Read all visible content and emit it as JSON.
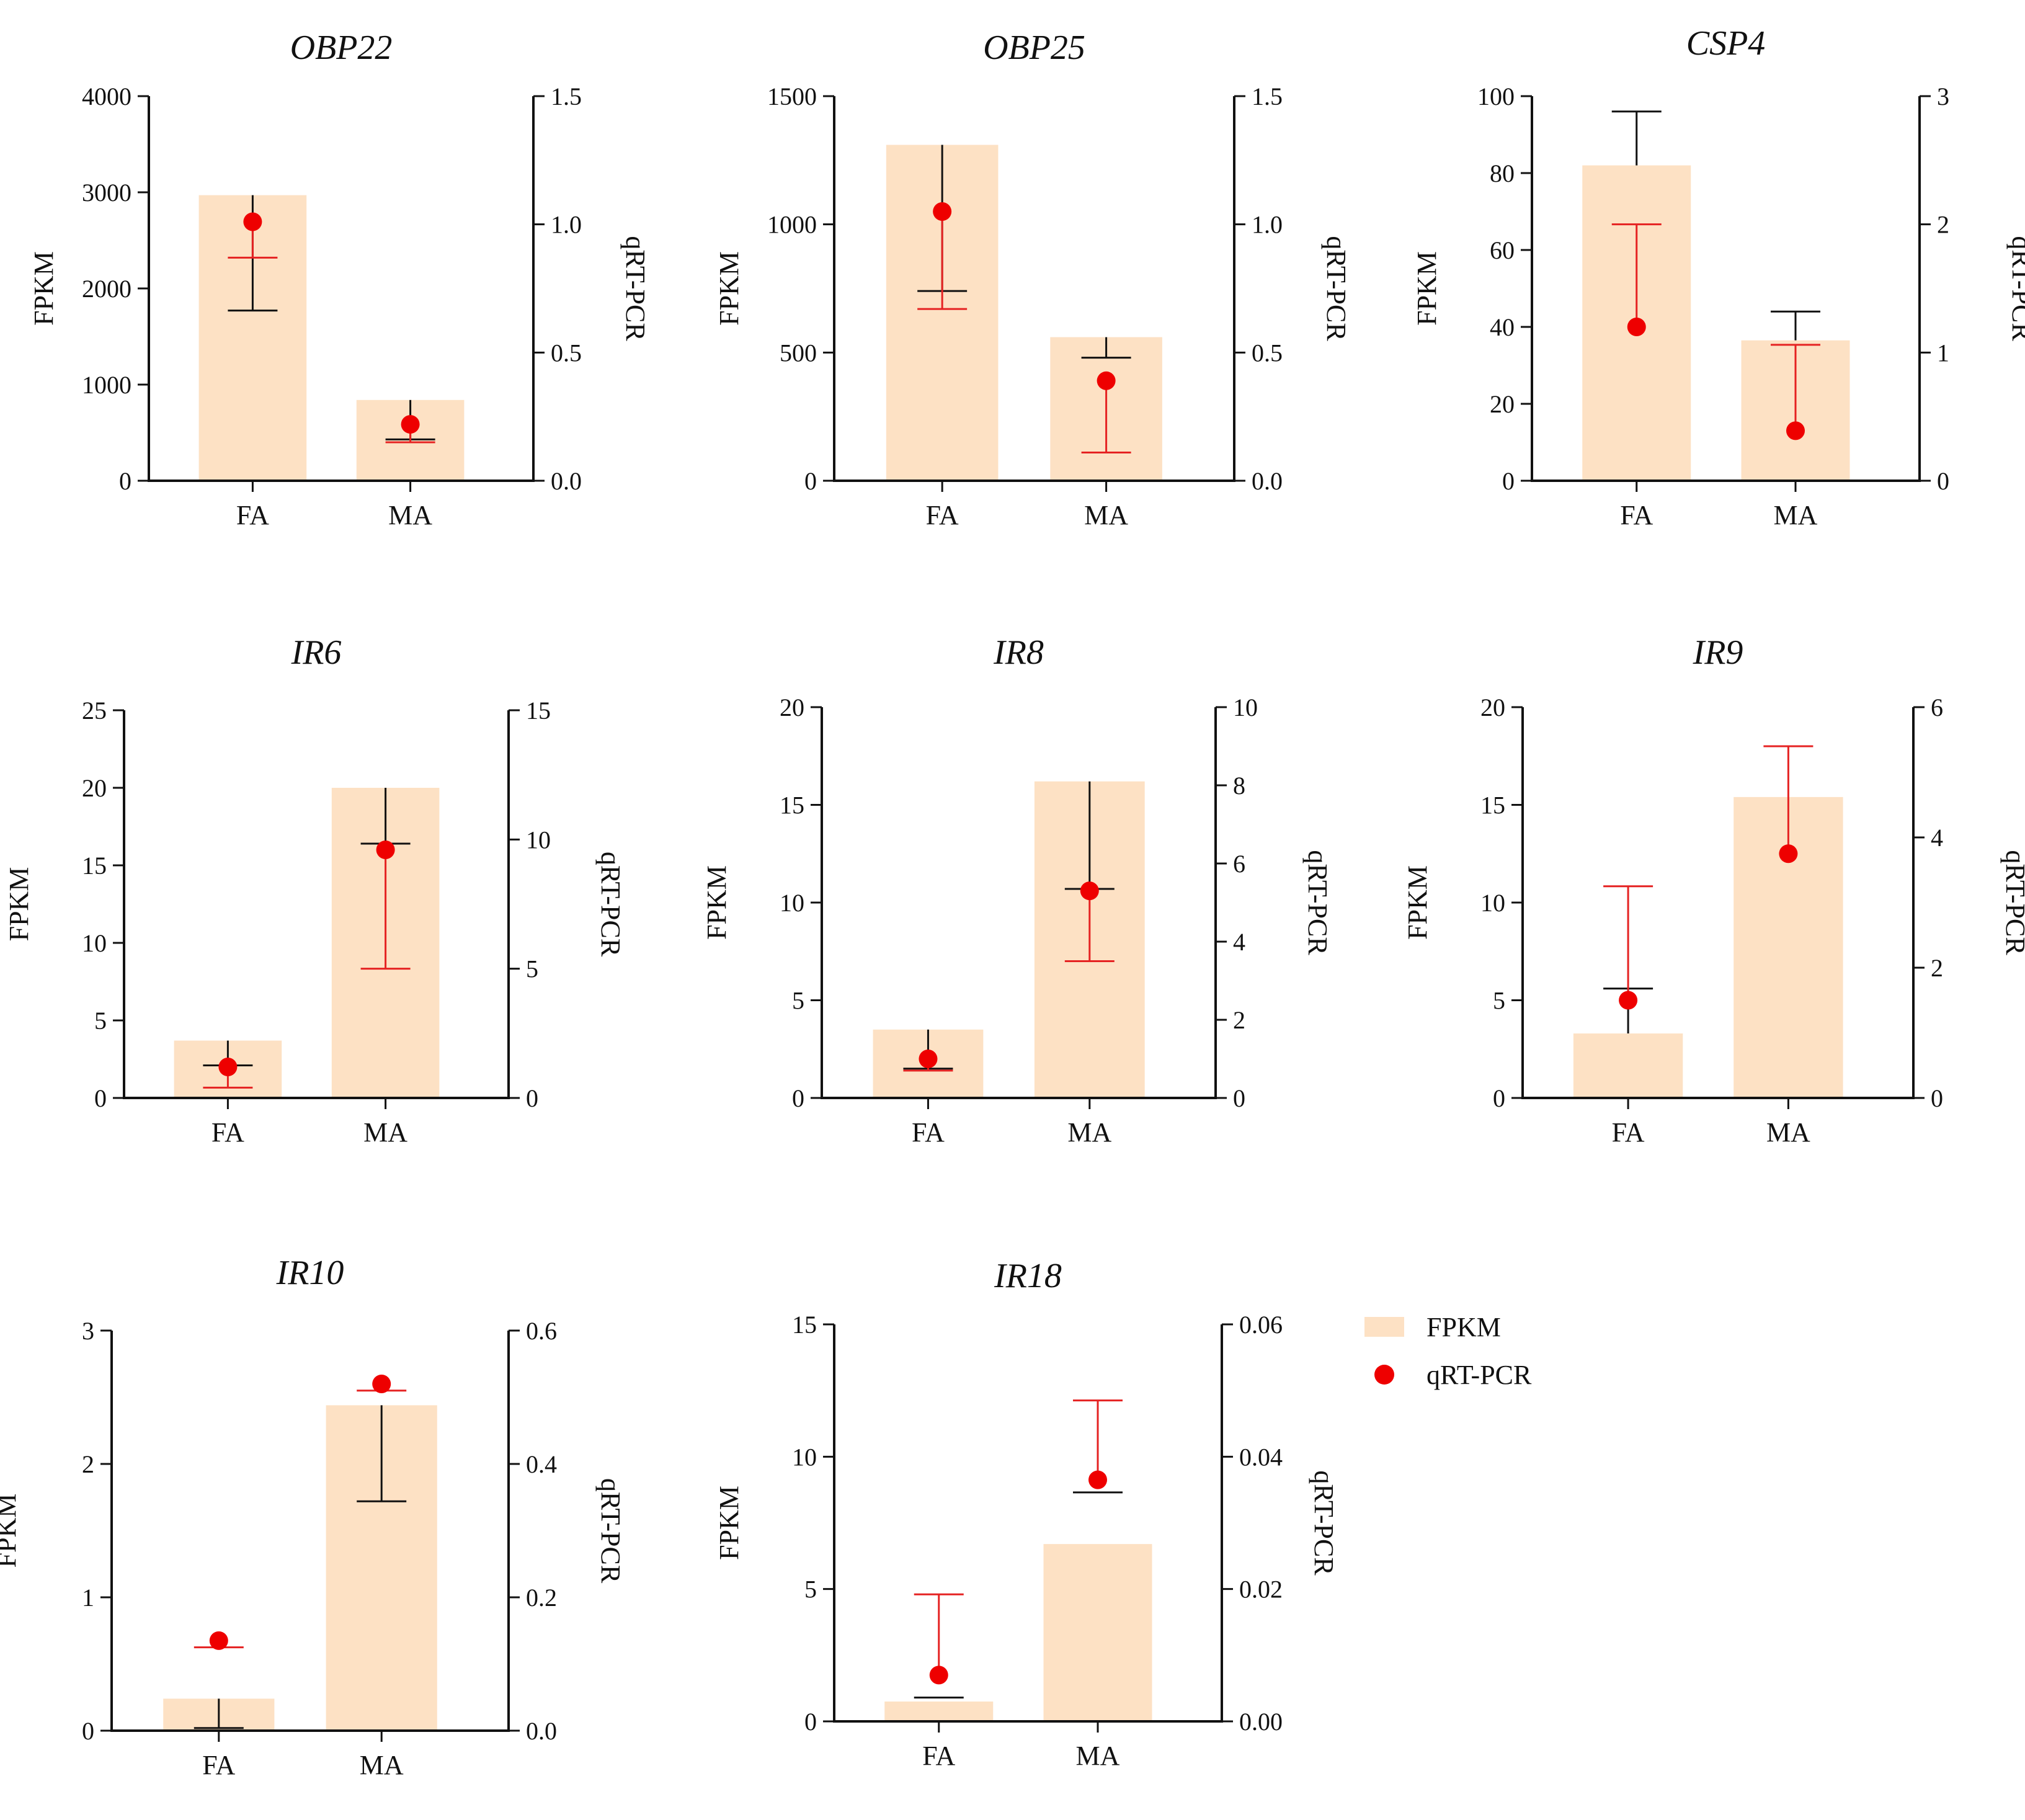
{
  "figure": {
    "colors": {
      "bar": "#fde1c4",
      "point": "#ee0000",
      "fpkm_error": "#111111",
      "qpcr_error": "#e52222",
      "axis": "#111111"
    }
  },
  "legend": {
    "fpkm_label": "FPKM",
    "qpcr_label": "qRT-PCR"
  },
  "chart_data": [
    {
      "type": "bar",
      "title": "OBP22",
      "categories": [
        "FA",
        "MA"
      ],
      "ylabel": "FPKM",
      "y2label": "qRT-PCR",
      "ylim": [
        0,
        4000
      ],
      "yticks": [
        0,
        1000,
        2000,
        3000,
        4000
      ],
      "yticklabels": [
        "0",
        "1000",
        "2000",
        "3000",
        "4000"
      ],
      "y2lim": [
        0,
        1.5
      ],
      "y2ticks": [
        0,
        0.5,
        1.0,
        1.5
      ],
      "y2ticklabels": [
        "0.0",
        "0.5",
        "1.0",
        "1.5"
      ],
      "series": [
        {
          "name": "FPKM",
          "axis": "left",
          "values": [
            2970,
            840
          ],
          "err_low": [
            1770,
            430
          ],
          "err_high": [
            2970,
            840
          ]
        },
        {
          "name": "qRT-PCR",
          "axis": "right",
          "values": [
            1.01,
            0.22
          ],
          "err_low": [
            0.87,
            0.15
          ],
          "err_high": [
            1.01,
            0.22
          ]
        }
      ]
    },
    {
      "type": "bar",
      "title": "OBP25",
      "categories": [
        "FA",
        "MA"
      ],
      "ylabel": "FPKM",
      "y2label": "qRT-PCR",
      "ylim": [
        0,
        1500
      ],
      "yticks": [
        0,
        500,
        1000,
        1500
      ],
      "yticklabels": [
        "0",
        "500",
        "1000",
        "1500"
      ],
      "y2lim": [
        0,
        1.5
      ],
      "y2ticks": [
        0,
        0.5,
        1.0,
        1.5
      ],
      "y2ticklabels": [
        "0.0",
        "0.5",
        "1.0",
        "1.5"
      ],
      "series": [
        {
          "name": "FPKM",
          "axis": "left",
          "values": [
            1310,
            560
          ],
          "err_low": [
            740,
            480
          ],
          "err_high": [
            1310,
            560
          ]
        },
        {
          "name": "qRT-PCR",
          "axis": "right",
          "values": [
            1.05,
            0.39
          ],
          "err_low": [
            0.67,
            0.11
          ],
          "err_high": [
            1.05,
            0.39
          ]
        }
      ]
    },
    {
      "type": "bar",
      "title": "CSP4",
      "categories": [
        "FA",
        "MA"
      ],
      "ylabel": "FPKM",
      "y2label": "qRT-PCR",
      "ylim": [
        0,
        100
      ],
      "yticks": [
        0,
        20,
        40,
        60,
        80,
        100
      ],
      "yticklabels": [
        "0",
        "20",
        "40",
        "60",
        "80",
        "100"
      ],
      "y2lim": [
        0,
        3
      ],
      "y2ticks": [
        0,
        1,
        2,
        3
      ],
      "y2ticklabels": [
        "0",
        "1",
        "2",
        "3"
      ],
      "series": [
        {
          "name": "FPKM",
          "axis": "left",
          "values": [
            82,
            36.5
          ],
          "err_low": [
            82,
            36.5
          ],
          "err_high": [
            96,
            44
          ]
        },
        {
          "name": "qRT-PCR",
          "axis": "right",
          "values": [
            1.2,
            0.39
          ],
          "err_low": [
            1.2,
            0.39
          ],
          "err_high": [
            2.0,
            1.06
          ]
        }
      ]
    },
    {
      "type": "bar",
      "title": "IR6",
      "categories": [
        "FA",
        "MA"
      ],
      "ylabel": "FPKM",
      "y2label": "qRT-PCR",
      "ylim": [
        0,
        25
      ],
      "yticks": [
        0,
        5,
        10,
        15,
        20,
        25
      ],
      "yticklabels": [
        "0",
        "5",
        "10",
        "15",
        "20",
        "25"
      ],
      "y2lim": [
        0,
        15
      ],
      "y2ticks": [
        0,
        5,
        10,
        15
      ],
      "y2ticklabels": [
        "0",
        "5",
        "10",
        "15"
      ],
      "series": [
        {
          "name": "FPKM",
          "axis": "left",
          "values": [
            3.7,
            20
          ],
          "err_low": [
            2.1,
            16.4
          ],
          "err_high": [
            3.7,
            20
          ]
        },
        {
          "name": "qRT-PCR",
          "axis": "right",
          "values": [
            1.2,
            9.6
          ],
          "err_low": [
            0.4,
            5.0
          ],
          "err_high": [
            1.2,
            9.6
          ]
        }
      ]
    },
    {
      "type": "bar",
      "title": "IR8",
      "categories": [
        "FA",
        "MA"
      ],
      "ylabel": "FPKM",
      "y2label": "qRT-PCR",
      "ylim": [
        0,
        20
      ],
      "yticks": [
        0,
        5,
        10,
        15,
        20
      ],
      "yticklabels": [
        "0",
        "5",
        "10",
        "15",
        "20"
      ],
      "y2lim": [
        0,
        10
      ],
      "y2ticks": [
        0,
        2,
        4,
        6,
        8,
        10
      ],
      "y2ticklabels": [
        "0",
        "2",
        "4",
        "6",
        "8",
        "10"
      ],
      "series": [
        {
          "name": "FPKM",
          "axis": "left",
          "values": [
            3.5,
            16.2
          ],
          "err_low": [
            1.5,
            10.7
          ],
          "err_high": [
            3.5,
            16.2
          ]
        },
        {
          "name": "qRT-PCR",
          "axis": "right",
          "values": [
            1.0,
            5.3
          ],
          "err_low": [
            0.7,
            3.5
          ],
          "err_high": [
            1.0,
            5.3
          ]
        }
      ]
    },
    {
      "type": "bar",
      "title": "IR9",
      "categories": [
        "FA",
        "MA"
      ],
      "ylabel": "FPKM",
      "y2label": "qRT-PCR",
      "ylim": [
        0,
        20
      ],
      "yticks": [
        0,
        5,
        10,
        15,
        20
      ],
      "yticklabels": [
        "0",
        "5",
        "10",
        "15",
        "20"
      ],
      "y2lim": [
        0,
        6
      ],
      "y2ticks": [
        0,
        2,
        4,
        6
      ],
      "y2ticklabels": [
        "0",
        "2",
        "4",
        "6"
      ],
      "series": [
        {
          "name": "FPKM",
          "axis": "left",
          "values": [
            3.3,
            15.4
          ],
          "err_low": [
            3.3,
            15.4
          ],
          "err_high": [
            5.6,
            15.4
          ]
        },
        {
          "name": "qRT-PCR",
          "axis": "right",
          "values": [
            1.5,
            3.75
          ],
          "err_low": [
            1.5,
            3.75
          ],
          "err_high": [
            3.25,
            5.4
          ]
        }
      ]
    },
    {
      "type": "bar",
      "title": "IR10",
      "categories": [
        "FA",
        "MA"
      ],
      "ylabel": "FPKM",
      "y2label": "qRT-PCR",
      "ylim": [
        0,
        3
      ],
      "yticks": [
        0,
        1,
        2,
        3
      ],
      "yticklabels": [
        "0",
        "1",
        "2",
        "3"
      ],
      "y2lim": [
        0,
        0.6
      ],
      "y2ticks": [
        0,
        0.2,
        0.4,
        0.6
      ],
      "y2ticklabels": [
        "0.0",
        "0.2",
        "0.4",
        "0.6"
      ],
      "series": [
        {
          "name": "FPKM",
          "axis": "left",
          "values": [
            0.24,
            2.44
          ],
          "err_low": [
            0.02,
            1.72
          ],
          "err_high": [
            0.24,
            2.44
          ]
        },
        {
          "name": "qRT-PCR",
          "axis": "right",
          "values": [
            0.135,
            0.52
          ],
          "err_low": [
            0.125,
            0.51
          ],
          "err_high": [
            0.135,
            0.52
          ]
        }
      ]
    },
    {
      "type": "bar",
      "title": "IR18",
      "categories": [
        "FA",
        "MA"
      ],
      "ylabel": "FPKM",
      "y2label": "qRT-PCR",
      "ylim": [
        0,
        15
      ],
      "yticks": [
        0,
        5,
        10,
        15
      ],
      "yticklabels": [
        "0",
        "5",
        "10",
        "15"
      ],
      "y2lim": [
        0,
        0.06
      ],
      "y2ticks": [
        0,
        0.02,
        0.04,
        0.06
      ],
      "y2ticklabels": [
        "0.00",
        "0.02",
        "0.04",
        "0.06"
      ],
      "series": [
        {
          "name": "FPKM",
          "axis": "left",
          "values": [
            0.75,
            6.7
          ],
          "err_low": [
            0.9,
            8.65
          ],
          "err_high": [
            0.9,
            8.65
          ]
        },
        {
          "name": "qRT-PCR",
          "axis": "right",
          "values": [
            0.007,
            0.0365
          ],
          "err_low": [
            0.007,
            0.0365
          ],
          "err_high": [
            0.0192,
            0.0485
          ]
        }
      ]
    }
  ]
}
